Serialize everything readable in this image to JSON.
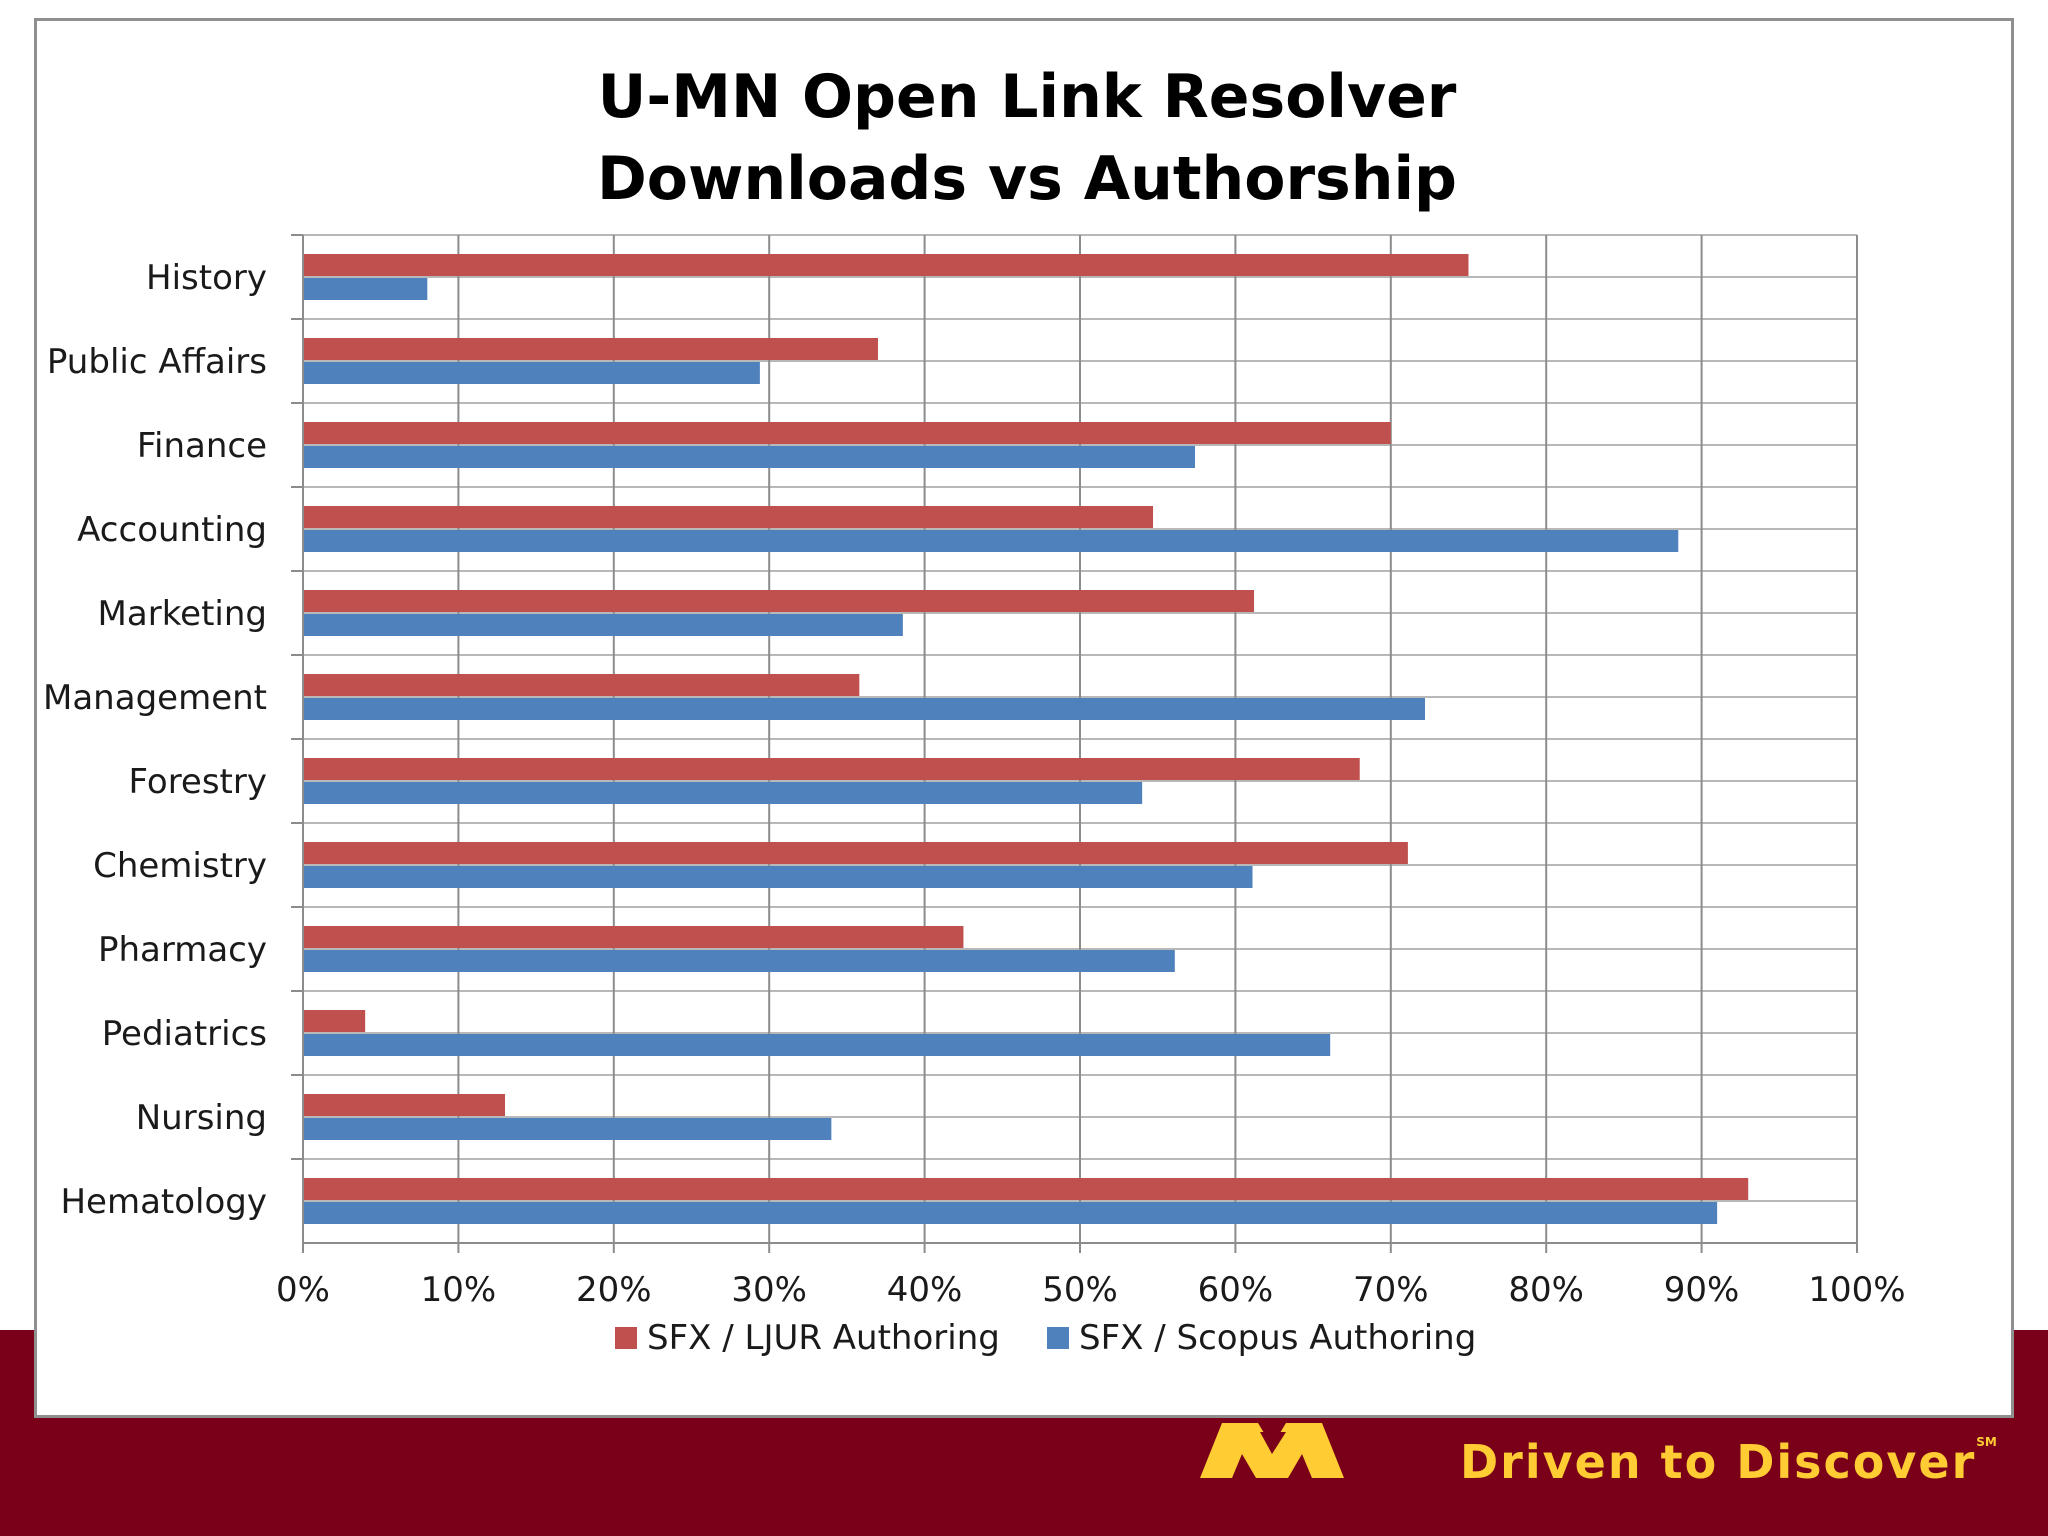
{
  "footer": {
    "tagline": "Driven to Discover",
    "tagline_mark": "SM",
    "brand_color": "#7a0019",
    "accent_color": "#ffcc33"
  },
  "chart_data": {
    "type": "bar",
    "orientation": "horizontal",
    "title": "U-MN Open Link Resolver\nDownloads vs Authorship",
    "title_lines": [
      "U-MN Open Link Resolver",
      "Downloads vs Authorship"
    ],
    "categories": [
      "History",
      "Public Affairs",
      "Finance",
      "Accounting",
      "Marketing",
      "Management",
      "Forestry",
      "Chemistry",
      "Pharmacy",
      "Pediatrics",
      "Nursing",
      "Hematology"
    ],
    "series": [
      {
        "name": "SFX / LJUR Authoring",
        "color": "#c0504d",
        "values": [
          75,
          37,
          70,
          54.7,
          61.2,
          35.8,
          68,
          71.1,
          42.5,
          4,
          13,
          93
        ]
      },
      {
        "name": "SFX / Scopus Authoring",
        "color": "#4f81bd",
        "values": [
          8,
          29.4,
          57.4,
          88.5,
          38.6,
          72.2,
          54,
          61.1,
          56.1,
          66.1,
          34,
          91
        ]
      }
    ],
    "xlim": [
      0,
      100
    ],
    "xticks": [
      0,
      10,
      20,
      30,
      40,
      50,
      60,
      70,
      80,
      90,
      100
    ],
    "xtick_labels": [
      "0%",
      "10%",
      "20%",
      "30%",
      "40%",
      "50%",
      "60%",
      "70%",
      "80%",
      "90%",
      "100%"
    ],
    "xlabel": "",
    "ylabel": "",
    "grid": true,
    "legend_position": "bottom"
  }
}
